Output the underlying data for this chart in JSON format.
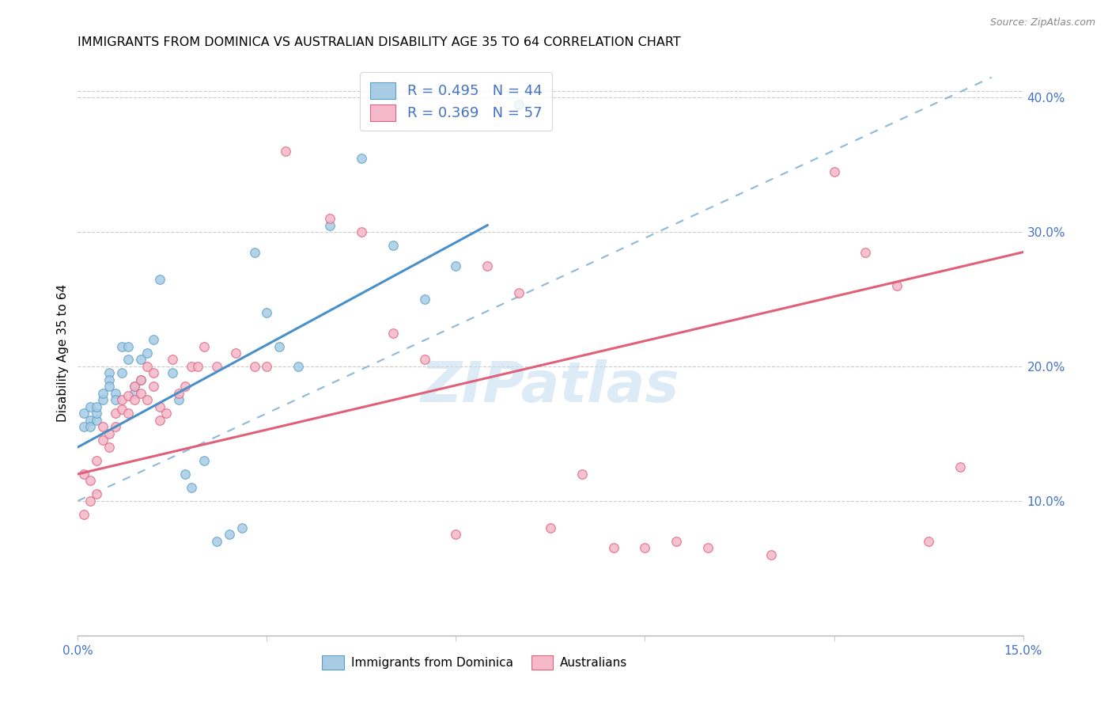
{
  "title": "IMMIGRANTS FROM DOMINICA VS AUSTRALIAN DISABILITY AGE 35 TO 64 CORRELATION CHART",
  "source": "Source: ZipAtlas.com",
  "ylabel": "Disability Age 35 to 64",
  "x_min": 0.0,
  "x_max": 0.15,
  "y_min": 0.0,
  "y_max": 0.42,
  "x_tick_positions": [
    0.0,
    0.03,
    0.06,
    0.09,
    0.12,
    0.15
  ],
  "x_tick_labels": [
    "0.0%",
    "",
    "",
    "",
    "",
    "15.0%"
  ],
  "y_ticks_right": [
    0.1,
    0.2,
    0.3,
    0.4
  ],
  "y_tick_labels_right": [
    "10.0%",
    "20.0%",
    "30.0%",
    "40.0%"
  ],
  "blue_color": "#a8cce4",
  "blue_edge": "#5b9fc8",
  "pink_color": "#f4b8c8",
  "pink_edge": "#e06080",
  "trend_blue_color": "#4a90c8",
  "trend_pink_color": "#e0607a",
  "trend_dashed_color": "#90b8d8",
  "watermark": "ZIPatlas",
  "watermark_color": "#c5dff0",
  "legend_label1": "R = 0.495   N = 44",
  "legend_label2": "R = 0.369   N = 57",
  "legend_text_color": "#4472c4",
  "bottom_legend1": "Immigrants from Dominica",
  "bottom_legend2": "Australians",
  "blue_scatter_x": [
    0.001,
    0.001,
    0.002,
    0.002,
    0.002,
    0.003,
    0.003,
    0.003,
    0.004,
    0.004,
    0.005,
    0.005,
    0.005,
    0.006,
    0.006,
    0.007,
    0.007,
    0.008,
    0.008,
    0.009,
    0.009,
    0.01,
    0.01,
    0.011,
    0.012,
    0.013,
    0.015,
    0.016,
    0.017,
    0.018,
    0.02,
    0.022,
    0.024,
    0.026,
    0.028,
    0.03,
    0.032,
    0.035,
    0.04,
    0.045,
    0.05,
    0.055,
    0.06,
    0.07
  ],
  "blue_scatter_y": [
    0.155,
    0.165,
    0.16,
    0.155,
    0.17,
    0.16,
    0.165,
    0.17,
    0.175,
    0.18,
    0.195,
    0.19,
    0.185,
    0.18,
    0.175,
    0.195,
    0.215,
    0.205,
    0.215,
    0.185,
    0.18,
    0.205,
    0.19,
    0.21,
    0.22,
    0.265,
    0.195,
    0.175,
    0.12,
    0.11,
    0.13,
    0.07,
    0.075,
    0.08,
    0.285,
    0.24,
    0.215,
    0.2,
    0.305,
    0.355,
    0.29,
    0.25,
    0.275,
    0.395
  ],
  "pink_scatter_x": [
    0.001,
    0.001,
    0.002,
    0.002,
    0.003,
    0.003,
    0.004,
    0.004,
    0.005,
    0.005,
    0.006,
    0.006,
    0.007,
    0.007,
    0.008,
    0.008,
    0.009,
    0.009,
    0.01,
    0.01,
    0.011,
    0.011,
    0.012,
    0.012,
    0.013,
    0.013,
    0.014,
    0.015,
    0.016,
    0.017,
    0.018,
    0.019,
    0.02,
    0.022,
    0.025,
    0.028,
    0.03,
    0.033,
    0.04,
    0.045,
    0.05,
    0.055,
    0.06,
    0.065,
    0.07,
    0.075,
    0.08,
    0.085,
    0.09,
    0.095,
    0.1,
    0.11,
    0.12,
    0.125,
    0.13,
    0.135,
    0.14
  ],
  "pink_scatter_y": [
    0.09,
    0.12,
    0.1,
    0.115,
    0.13,
    0.105,
    0.145,
    0.155,
    0.15,
    0.14,
    0.165,
    0.155,
    0.175,
    0.168,
    0.178,
    0.165,
    0.185,
    0.175,
    0.19,
    0.18,
    0.2,
    0.175,
    0.195,
    0.185,
    0.16,
    0.17,
    0.165,
    0.205,
    0.18,
    0.185,
    0.2,
    0.2,
    0.215,
    0.2,
    0.21,
    0.2,
    0.2,
    0.36,
    0.31,
    0.3,
    0.225,
    0.205,
    0.075,
    0.275,
    0.255,
    0.08,
    0.12,
    0.065,
    0.065,
    0.07,
    0.065,
    0.06,
    0.345,
    0.285,
    0.26,
    0.07,
    0.125
  ],
  "blue_trend_x": [
    0.0,
    0.065
  ],
  "blue_trend_y": [
    0.14,
    0.305
  ],
  "pink_trend_x": [
    0.0,
    0.15
  ],
  "pink_trend_y": [
    0.12,
    0.285
  ],
  "dashed_trend_x": [
    0.0,
    0.145
  ],
  "dashed_trend_y": [
    0.1,
    0.415
  ]
}
